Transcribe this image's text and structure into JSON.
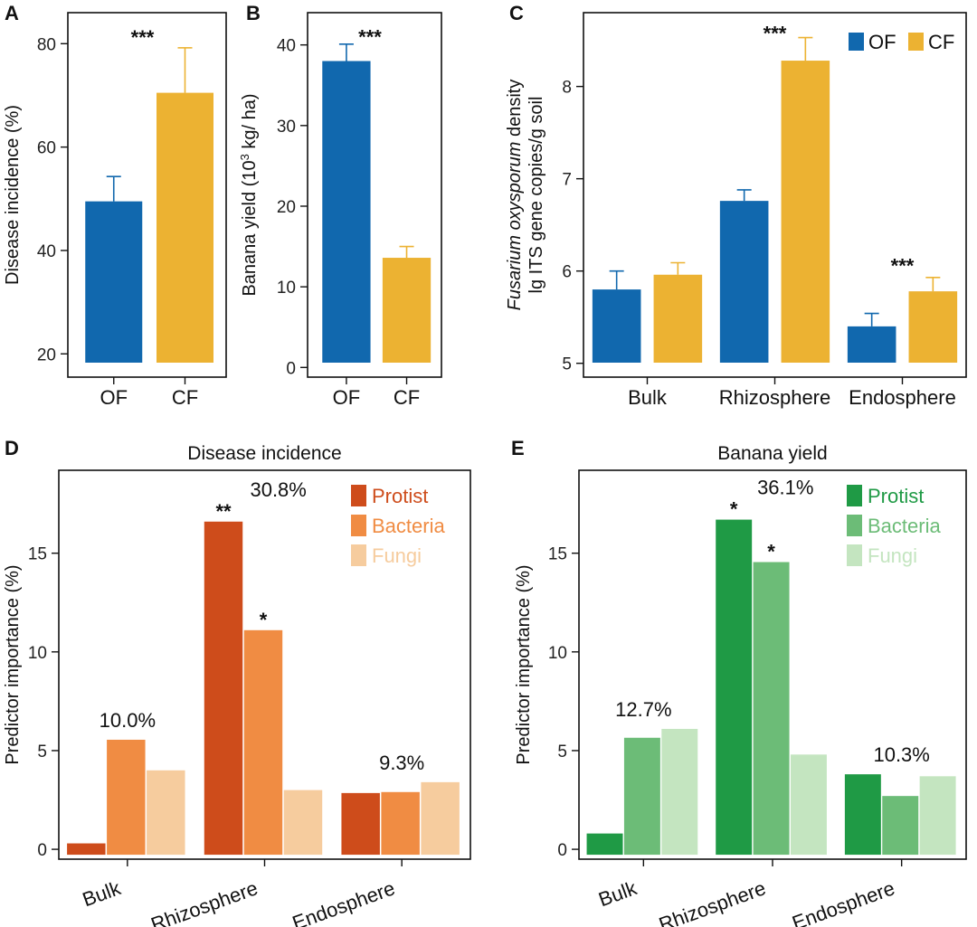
{
  "colors": {
    "of": "#1168AE",
    "cf": "#ECB232",
    "protist_red": "#CE4C1B",
    "bacteria_red": "#F08C43",
    "fungi_red": "#F6CC9E",
    "protist_green": "#1F9A45",
    "bacteria_green": "#6CBC77",
    "fungi_green": "#C4E5C0"
  },
  "chart_data": [
    {
      "id": "A",
      "panel_label": "A",
      "type": "bar",
      "title": "",
      "ylabel": "Disease incidence (%)",
      "ylim": [
        15.5,
        86
      ],
      "yticks": [
        20,
        40,
        60,
        80
      ],
      "categories": [
        "OF",
        "CF"
      ],
      "values": [
        49.5,
        70.5
      ],
      "errors": [
        4.8,
        8.7
      ],
      "bar_colors": [
        "of",
        "cf"
      ],
      "annotations": [
        {
          "text": "***",
          "value": 82
        }
      ]
    },
    {
      "id": "B",
      "panel_label": "B",
      "type": "bar",
      "title": "",
      "ylabel_prefix": "Banana yield (10",
      "ylabel_sup": "3",
      "ylabel_suffix": " kg/ ha)",
      "ylim": [
        -1.2,
        44
      ],
      "yticks": [
        0,
        10,
        20,
        30,
        40
      ],
      "categories": [
        "OF",
        "CF"
      ],
      "values": [
        38,
        13.6
      ],
      "errors": [
        2.1,
        1.4
      ],
      "bar_colors": [
        "of",
        "cf"
      ],
      "annotations": [
        {
          "text": "***",
          "value": 41.5
        }
      ]
    },
    {
      "id": "C",
      "panel_label": "C",
      "type": "bar",
      "title": "",
      "ylabel_line1_italic": "Fusarium oxysporum",
      "ylabel_line1_rest": " density",
      "ylabel_line2": "lg ITS gene copies/g soil",
      "ylim": [
        4.85,
        8.8
      ],
      "yticks": [
        5,
        6,
        7,
        8
      ],
      "categories": [
        "Bulk",
        "Rhizosphere",
        "Endosphere"
      ],
      "series": [
        {
          "name": "OF",
          "values": [
            5.8,
            6.76,
            5.4
          ],
          "errors": [
            0.2,
            0.12,
            0.14
          ]
        },
        {
          "name": "CF",
          "values": [
            5.96,
            8.28,
            5.78
          ],
          "errors": [
            0.13,
            0.25,
            0.15
          ]
        }
      ],
      "series_colors": [
        "of",
        "cf"
      ],
      "legend": {
        "position": "top-right",
        "entries": [
          "OF",
          "CF"
        ]
      },
      "annotations": [
        {
          "text": "***",
          "category": 1,
          "value": 8.62
        },
        {
          "text": "***",
          "category": 2,
          "value": 6.1
        }
      ]
    },
    {
      "id": "D",
      "panel_label": "D",
      "type": "bar",
      "title": "Disease incidence",
      "ylabel": "Predictor importance (%)",
      "ylim": [
        -0.5,
        19.2
      ],
      "yticks": [
        0,
        5,
        10,
        15
      ],
      "categories": [
        "Bulk",
        "Rhizosphere",
        "Endosphere"
      ],
      "series": [
        {
          "name": "Protist",
          "values": [
            0.3,
            16.6,
            2.85
          ]
        },
        {
          "name": "Bacteria",
          "values": [
            5.55,
            11.1,
            2.9
          ]
        },
        {
          "name": "Fungi",
          "values": [
            4.0,
            3.0,
            3.4
          ]
        }
      ],
      "series_colors": [
        "protist_red",
        "bacteria_red",
        "fungi_red"
      ],
      "legend": {
        "position": "top-right",
        "entries": [
          "Protist",
          "Bacteria",
          "Fungi"
        ]
      },
      "group_labels": [
        "10.0%",
        "30.8%",
        "9.3%"
      ],
      "annotations": [
        {
          "text": "**",
          "category": 1,
          "series": 0
        },
        {
          "text": "*",
          "category": 1,
          "series": 1
        }
      ]
    },
    {
      "id": "E",
      "panel_label": "E",
      "type": "bar",
      "title": "Banana yield",
      "ylabel": "Predictor importance (%)",
      "ylim": [
        -0.5,
        19.2
      ],
      "yticks": [
        0,
        5,
        10,
        15
      ],
      "categories": [
        "Bulk",
        "Rhizosphere",
        "Endosphere"
      ],
      "series": [
        {
          "name": "Protist",
          "values": [
            0.8,
            16.7,
            3.8
          ]
        },
        {
          "name": "Bacteria",
          "values": [
            5.65,
            14.55,
            2.7
          ]
        },
        {
          "name": "Fungi",
          "values": [
            6.1,
            4.8,
            3.7
          ]
        }
      ],
      "series_colors": [
        "protist_green",
        "bacteria_green",
        "fungi_green"
      ],
      "legend": {
        "position": "top-right",
        "entries": [
          "Protist",
          "Bacteria",
          "Fungi"
        ]
      },
      "group_labels": [
        "12.7%",
        "36.1%",
        "10.3%"
      ],
      "annotations": [
        {
          "text": "*",
          "category": 1,
          "series": 0
        },
        {
          "text": "*",
          "category": 1,
          "series": 1
        }
      ]
    }
  ]
}
